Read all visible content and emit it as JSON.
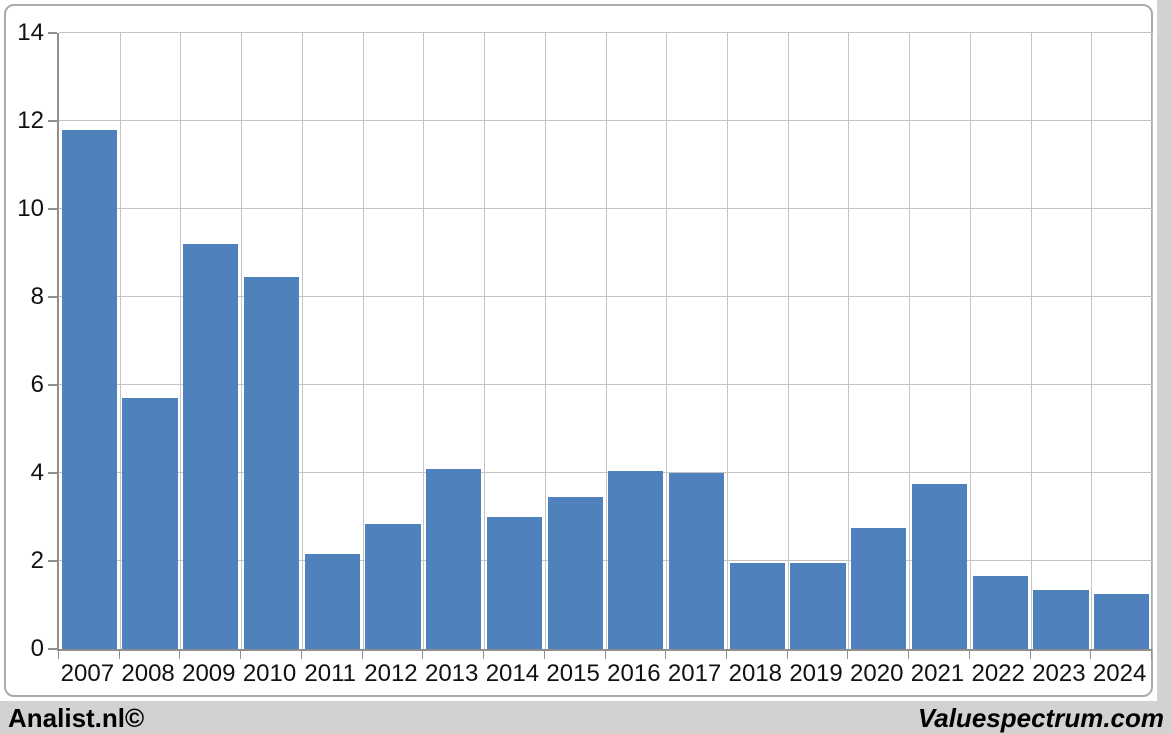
{
  "page": {
    "background_color": "#d2d2d2",
    "panel_background": "#ffffff",
    "panel_border_color": "#ababab"
  },
  "footer": {
    "left_credit": "Analist.nl©",
    "right_credit": "Valuespectrum.com"
  },
  "chart_data": {
    "type": "bar",
    "title": "",
    "xlabel": "",
    "ylabel": "",
    "categories": [
      "2007",
      "2008",
      "2009",
      "2010",
      "2011",
      "2012",
      "2013",
      "2014",
      "2015",
      "2016",
      "2017",
      "2018",
      "2019",
      "2020",
      "2021",
      "2022",
      "2023",
      "2024"
    ],
    "values": [
      11.8,
      5.7,
      9.2,
      8.45,
      2.15,
      2.85,
      4.1,
      3.0,
      3.45,
      4.05,
      4.0,
      1.95,
      1.95,
      2.75,
      3.75,
      1.65,
      1.35,
      1.25
    ],
    "ylim": [
      0,
      14
    ],
    "yticks": [
      0,
      2,
      4,
      6,
      8,
      10,
      12,
      14
    ],
    "grid": "both",
    "legend": null,
    "bar_color": "#4f81bd",
    "gridline_color": "#c4c4c4",
    "axis_color": "#8f8f8f",
    "tick_label_color": "#111111"
  }
}
